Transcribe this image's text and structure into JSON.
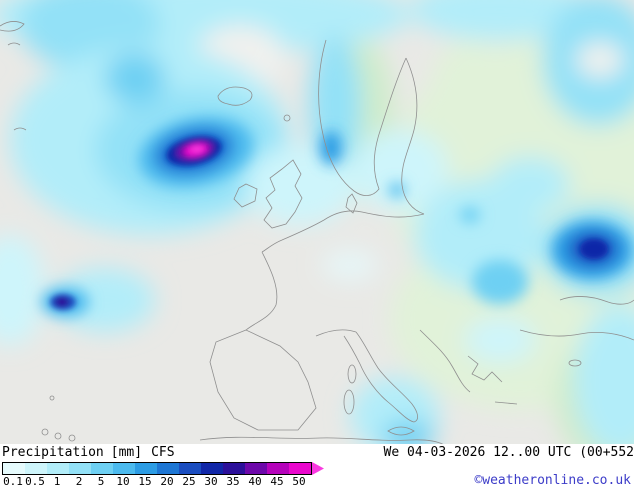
{
  "map": {
    "region": "Europe",
    "palette": {
      "base": "#e9e9e6",
      "sea_gap": "#f1f1ee",
      "green_light": "#e1f2d9",
      "green_mid": "#cfeccb",
      "coast": "#8f8f8f"
    }
  },
  "footer": {
    "title": "Precipitation",
    "unit": "[mm]",
    "model": "CFS",
    "datetime": "We 04-03-2026 12..00 UTC (00+552",
    "copyright": "©weatheronline.co.uk"
  },
  "legend": {
    "values": [
      "0.1",
      "0.5",
      "1",
      "2",
      "5",
      "10",
      "15",
      "20",
      "25",
      "30",
      "35",
      "40",
      "45",
      "50"
    ],
    "colors": [
      "#e6fbfd",
      "#cef5fb",
      "#b2edf9",
      "#93e1f7",
      "#6ed0f3",
      "#4cbaee",
      "#2c9ce4",
      "#1d76d4",
      "#1a4dc0",
      "#1127a8",
      "#2c109a",
      "#6d08aa",
      "#b503bb",
      "#ea07cd"
    ],
    "arrow_color": "#f93ae0"
  }
}
